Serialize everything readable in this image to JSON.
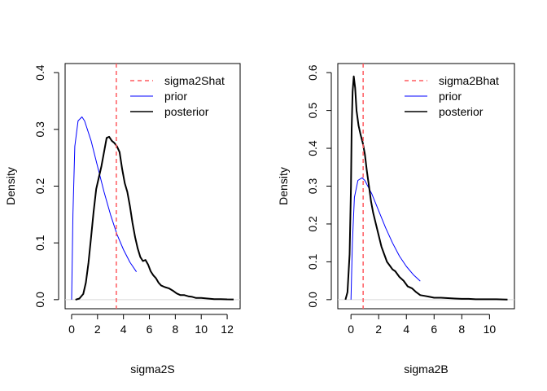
{
  "chart_data": [
    {
      "type": "line",
      "xlabel": "sigma2S",
      "ylabel": "Density",
      "xlim": [
        -0.5,
        13.0
      ],
      "ylim": [
        -0.016,
        0.416
      ],
      "xticks": [
        "0",
        "2",
        "4",
        "6",
        "8",
        "10",
        "12"
      ],
      "xtick_values": [
        0,
        2,
        4,
        6,
        8,
        10,
        12
      ],
      "yticks": [
        "0.0",
        "0.1",
        "0.2",
        "0.3",
        "0.4"
      ],
      "ytick_values": [
        0,
        0.1,
        0.2,
        0.3,
        0.4
      ],
      "grid": false,
      "legend_position": "top-right",
      "vline": {
        "name": "sigma2Shat",
        "x": 3.45,
        "color": "#ff5a5f",
        "dash": true
      },
      "series": [
        {
          "name": "prior",
          "color": "#0000ff",
          "lw": 1,
          "x": [
            0,
            0.1,
            0.25,
            0.5,
            0.8,
            1.0,
            1.5,
            2.0,
            2.5,
            3.0,
            3.5,
            4.0,
            4.5,
            5.0
          ],
          "y": [
            0,
            0.15,
            0.27,
            0.315,
            0.322,
            0.315,
            0.28,
            0.235,
            0.19,
            0.15,
            0.115,
            0.088,
            0.066,
            0.049
          ]
        },
        {
          "name": "posterior",
          "color": "#000000",
          "lw": 2,
          "x": [
            0.3,
            0.6,
            0.9,
            1.1,
            1.3,
            1.5,
            1.7,
            1.9,
            2.1,
            2.3,
            2.5,
            2.7,
            2.9,
            3.1,
            3.3,
            3.5,
            3.7,
            3.9,
            4.1,
            4.3,
            4.5,
            4.7,
            4.9,
            5.1,
            5.3,
            5.5,
            5.7,
            5.9,
            6.1,
            6.3,
            6.5,
            6.7,
            6.9,
            7.2,
            7.5,
            7.8,
            8.1,
            8.4,
            8.7,
            9.0,
            9.3,
            9.6,
            10.0,
            10.5,
            11.0,
            11.5,
            12.0,
            12.5
          ],
          "y": [
            0,
            0.002,
            0.01,
            0.03,
            0.065,
            0.11,
            0.155,
            0.195,
            0.215,
            0.235,
            0.26,
            0.285,
            0.287,
            0.28,
            0.276,
            0.27,
            0.26,
            0.23,
            0.205,
            0.19,
            0.165,
            0.135,
            0.11,
            0.09,
            0.075,
            0.068,
            0.07,
            0.062,
            0.05,
            0.043,
            0.038,
            0.03,
            0.025,
            0.022,
            0.02,
            0.016,
            0.011,
            0.008,
            0.008,
            0.006,
            0.005,
            0.003,
            0.003,
            0.002,
            0.001,
            0.001,
            0.0005,
            0.0003
          ]
        }
      ]
    },
    {
      "type": "line",
      "xlabel": "sigma2B",
      "ylabel": "Density",
      "xlim": [
        -0.95,
        11.8
      ],
      "ylim": [
        -0.024,
        0.624
      ],
      "xticks": [
        "0",
        "2",
        "4",
        "6",
        "8",
        "10"
      ],
      "xtick_values": [
        0,
        2,
        4,
        6,
        8,
        10
      ],
      "yticks": [
        "0.0",
        "0.1",
        "0.2",
        "0.3",
        "0.4",
        "0.5",
        "0.6"
      ],
      "ytick_values": [
        0,
        0.1,
        0.2,
        0.3,
        0.4,
        0.5,
        0.6
      ],
      "grid": false,
      "legend_position": "top-right",
      "vline": {
        "name": "sigma2Bhat",
        "x": 0.88,
        "color": "#ff5a5f",
        "dash": true
      },
      "series": [
        {
          "name": "prior",
          "color": "#0000ff",
          "lw": 1,
          "x": [
            0,
            0.1,
            0.25,
            0.5,
            0.8,
            1.0,
            1.5,
            2.0,
            2.5,
            3.0,
            3.5,
            4.0,
            4.5,
            5.0
          ],
          "y": [
            0,
            0.15,
            0.27,
            0.315,
            0.322,
            0.315,
            0.28,
            0.235,
            0.19,
            0.15,
            0.115,
            0.088,
            0.066,
            0.049
          ]
        },
        {
          "name": "posterior",
          "color": "#000000",
          "lw": 2,
          "x": [
            -0.4,
            -0.25,
            -0.1,
            0.0,
            0.05,
            0.12,
            0.2,
            0.3,
            0.4,
            0.55,
            0.7,
            0.85,
            1.0,
            1.15,
            1.3,
            1.45,
            1.6,
            1.8,
            2.0,
            2.2,
            2.4,
            2.6,
            2.8,
            3.0,
            3.2,
            3.5,
            3.8,
            4.1,
            4.4,
            4.7,
            5.0,
            5.3,
            5.6,
            6.0,
            6.5,
            7.0,
            7.5,
            8.0,
            8.5,
            9.0,
            9.5,
            10.0,
            10.5,
            11.0,
            11.3
          ],
          "y": [
            0,
            0.02,
            0.12,
            0.3,
            0.45,
            0.55,
            0.59,
            0.56,
            0.5,
            0.46,
            0.435,
            0.415,
            0.385,
            0.34,
            0.3,
            0.26,
            0.23,
            0.2,
            0.17,
            0.14,
            0.12,
            0.1,
            0.09,
            0.08,
            0.075,
            0.06,
            0.05,
            0.035,
            0.03,
            0.02,
            0.012,
            0.01,
            0.008,
            0.005,
            0.005,
            0.004,
            0.003,
            0.002,
            0.002,
            0.001,
            0.001,
            0.001,
            0.001,
            0.0005,
            0.0003
          ]
        }
      ]
    }
  ]
}
